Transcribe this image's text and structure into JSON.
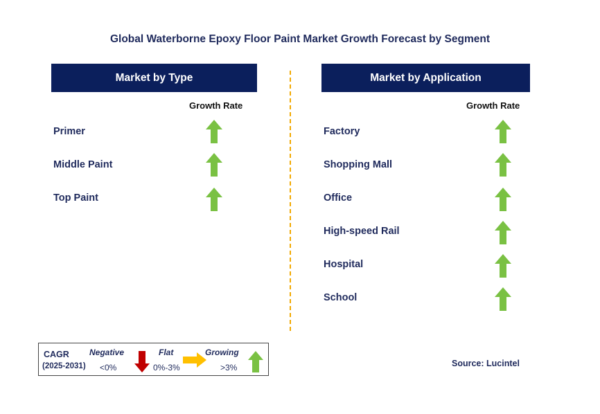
{
  "title": "Global Waterborne Epoxy Floor Paint Market Growth Forecast by Segment",
  "left_panel": {
    "header": "Market by Type",
    "column_label": "Growth Rate",
    "items": [
      {
        "label": "Primer",
        "trend": "growing"
      },
      {
        "label": "Middle Paint",
        "trend": "growing"
      },
      {
        "label": "Top Paint",
        "trend": "growing"
      }
    ]
  },
  "right_panel": {
    "header": "Market by Application",
    "column_label": "Growth Rate",
    "items": [
      {
        "label": "Factory",
        "trend": "growing"
      },
      {
        "label": "Shopping Mall",
        "trend": "growing"
      },
      {
        "label": "Office",
        "trend": "growing"
      },
      {
        "label": "High-speed Rail",
        "trend": "growing"
      },
      {
        "label": "Hospital",
        "trend": "growing"
      },
      {
        "label": "School",
        "trend": "growing"
      }
    ]
  },
  "legend": {
    "cagr_label": "CAGR",
    "period": "(2025-2031)",
    "negative": {
      "label": "Negative",
      "range": "<0%",
      "color": "#c00000"
    },
    "flat": {
      "label": "Flat",
      "range": "0%-3%",
      "color": "#ffc000"
    },
    "growing": {
      "label": "Growing",
      "range": ">3%",
      "color": "#7ac143"
    }
  },
  "source": "Source: Lucintel",
  "colors": {
    "header_bg": "#0b1f5c",
    "title": "#1f2a5c",
    "divider": "#f2a900",
    "arrow_up": "#7ac143"
  }
}
